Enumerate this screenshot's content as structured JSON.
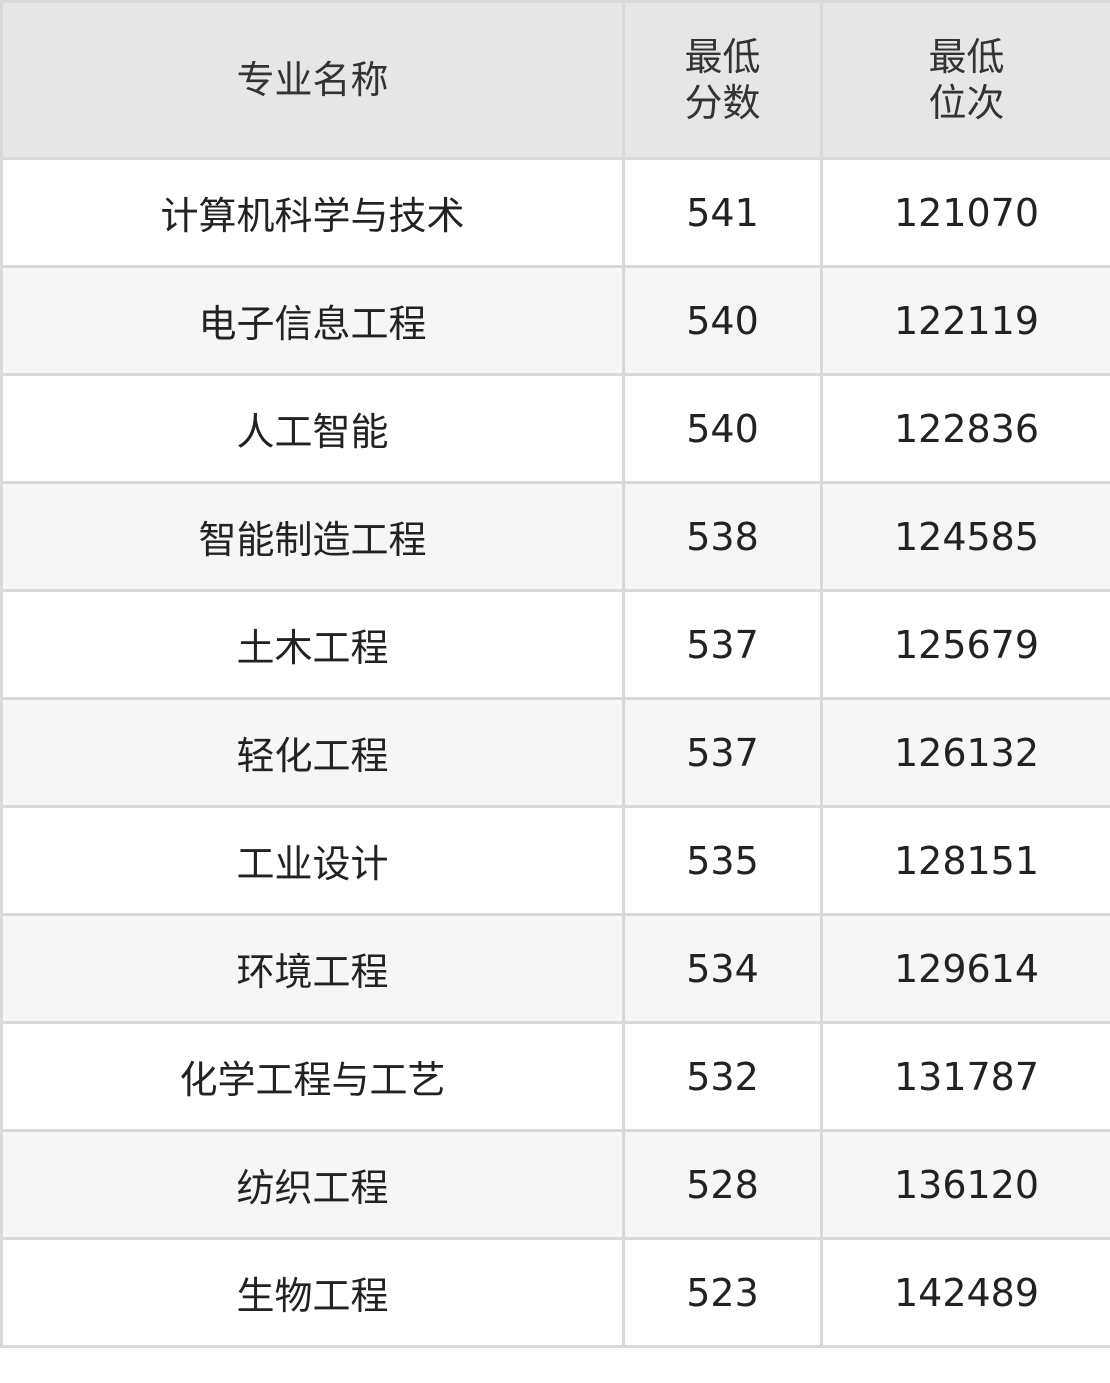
{
  "table": {
    "headers": [
      {
        "lines": [
          "专业名称"
        ]
      },
      {
        "lines": [
          "最低",
          "分数"
        ]
      },
      {
        "lines": [
          "最低",
          "位次"
        ]
      }
    ],
    "rows": [
      {
        "major": "计算机科学与技术",
        "min_score": "541",
        "min_rank": "121070"
      },
      {
        "major": "电子信息工程",
        "min_score": "540",
        "min_rank": "122119"
      },
      {
        "major": "人工智能",
        "min_score": "540",
        "min_rank": "122836"
      },
      {
        "major": "智能制造工程",
        "min_score": "538",
        "min_rank": "124585"
      },
      {
        "major": "土木工程",
        "min_score": "537",
        "min_rank": "125679"
      },
      {
        "major": "轻化工程",
        "min_score": "537",
        "min_rank": "126132"
      },
      {
        "major": "工业设计",
        "min_score": "535",
        "min_rank": "128151"
      },
      {
        "major": "环境工程",
        "min_score": "534",
        "min_rank": "129614"
      },
      {
        "major": "化学工程与工艺",
        "min_score": "532",
        "min_rank": "131787"
      },
      {
        "major": "纺织工程",
        "min_score": "528",
        "min_rank": "136120"
      },
      {
        "major": "生物工程",
        "min_score": "523",
        "min_rank": "142489"
      }
    ]
  },
  "colors": {
    "header_bg": "#e6e6e6",
    "alt_row_bg": "#f6f6f6",
    "border": "#d9d9d9",
    "text": "#222222"
  }
}
